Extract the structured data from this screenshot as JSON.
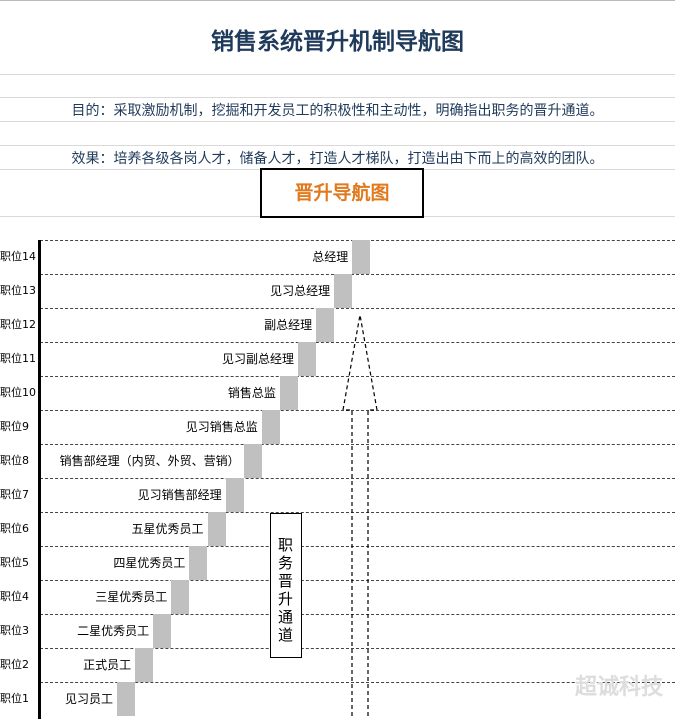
{
  "title": "销售系统晋升机制导航图",
  "purpose": "目的：采取激励机制，挖掘和开发员工的积极性和主动性，明确指出职务的晋升通道。",
  "effect": "效果：培养各级各岗人才，储备人才，打造人才梯队，打造出由下而上的高效的团队。",
  "nav_title": "晋升导航图",
  "channel_label": "职务晋升通道",
  "watermark": "超诚科技",
  "levels": [
    {
      "position": "职位14",
      "title": "总经理"
    },
    {
      "position": "职位13",
      "title": "见习总经理"
    },
    {
      "position": "职位12",
      "title": "副总经理"
    },
    {
      "position": "职位11",
      "title": "见习副总经理"
    },
    {
      "position": "职位10",
      "title": "销售总监"
    },
    {
      "position": "职位9",
      "title": "见习销售总监"
    },
    {
      "position": "职位8",
      "title": "销售部经理（内贸、外贸、营销）"
    },
    {
      "position": "职位7",
      "title": "见习销售部经理"
    },
    {
      "position": "职位6",
      "title": "五星优秀员工"
    },
    {
      "position": "职位5",
      "title": "四星优秀员工"
    },
    {
      "position": "职位4",
      "title": "三星优秀员工"
    },
    {
      "position": "职位3",
      "title": "二星优秀员工"
    },
    {
      "position": "职位2",
      "title": "正式员工"
    },
    {
      "position": "职位1",
      "title": "见习员工"
    }
  ]
}
